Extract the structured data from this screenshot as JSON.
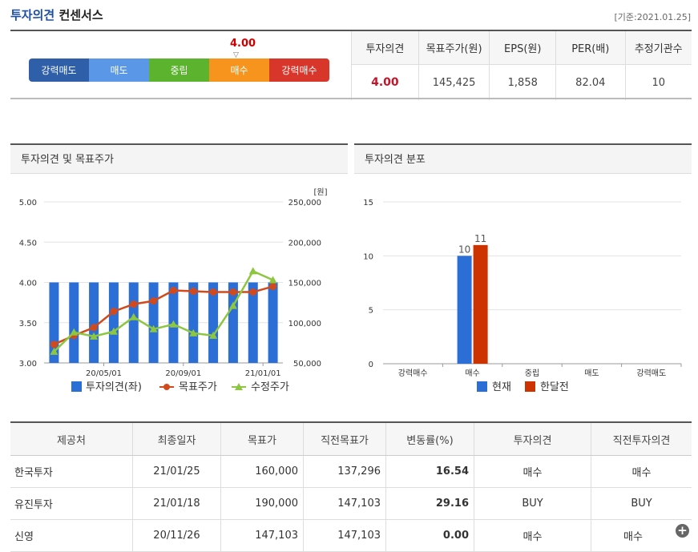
{
  "header": {
    "title_blue": "투자의견",
    "title_dark": "컨센서스",
    "date": "[기준:2021.01.25]"
  },
  "rating": {
    "value": "4.00",
    "marker": "▽",
    "scale": [
      {
        "label": "강력매도",
        "color": "#2e5fa8"
      },
      {
        "label": "매도",
        "color": "#5a97e6"
      },
      {
        "label": "중립",
        "color": "#5cb42e"
      },
      {
        "label": "매수",
        "color": "#f7941d"
      },
      {
        "label": "강력매수",
        "color": "#d9362b"
      }
    ]
  },
  "summary": {
    "headers": [
      "투자의견",
      "목표주가(원)",
      "EPS(원)",
      "PER(배)",
      "추정기관수"
    ],
    "values": [
      "4.00",
      "145,425",
      "1,858",
      "82.04",
      "10"
    ]
  },
  "panels": {
    "left_title": "투자의견 및 목표주가",
    "right_title": "투자의견 분포"
  },
  "chart_data": [
    {
      "type": "bar+line",
      "unit_label": "[원]",
      "y_left_ticks": [
        "5.00",
        "4.50",
        "4.00",
        "3.50",
        "3.00"
      ],
      "y_right_ticks": [
        "250,000",
        "200,000",
        "150,000",
        "100,000",
        "50,000"
      ],
      "ylim_left": [
        3.0,
        5.0
      ],
      "ylim_right": [
        50000,
        250000
      ],
      "x_tick_labels": [
        {
          "index": 2,
          "label": "20/05/01"
        },
        {
          "index": 6,
          "label": "20/09/01"
        },
        {
          "index": 10,
          "label": "21/01/01"
        }
      ],
      "series": [
        {
          "name": "투자의견(좌)",
          "type": "bar",
          "color": "#2b6fd6",
          "values": [
            4.0,
            4.0,
            4.0,
            4.0,
            4.0,
            4.0,
            4.0,
            4.0,
            4.0,
            4.0,
            4.0,
            4.0
          ]
        },
        {
          "name": "목표주가",
          "type": "line",
          "color": "#d24a1b",
          "marker": "circle",
          "values": [
            73000,
            84000,
            94000,
            114000,
            123000,
            127000,
            140000,
            139000,
            138000,
            138000,
            138000,
            145000
          ]
        },
        {
          "name": "수정주가",
          "type": "line",
          "color": "#8dc63f",
          "marker": "triangle",
          "values": [
            64000,
            88000,
            83000,
            89000,
            107000,
            92000,
            98000,
            87000,
            84000,
            121000,
            164000,
            153000
          ]
        }
      ],
      "grid": true,
      "legend": "bottom"
    },
    {
      "type": "bar",
      "categories": [
        "강력매수",
        "매수",
        "중립",
        "매도",
        "강력매도"
      ],
      "y_ticks": [
        "15",
        "10",
        "5",
        "0"
      ],
      "ylim": [
        0,
        15
      ],
      "series": [
        {
          "name": "현재",
          "color": "#2b6fd6",
          "values": [
            0,
            10,
            0,
            0,
            0
          ]
        },
        {
          "name": "한달전",
          "color": "#cc3300",
          "values": [
            0,
            11,
            0,
            0,
            0
          ]
        }
      ],
      "data_labels": [
        "10",
        "11"
      ],
      "grid": true,
      "legend": "bottom"
    }
  ],
  "table": {
    "headers": [
      "제공처",
      "최종일자",
      "목표가",
      "직전목표가",
      "변동률(%)",
      "투자의견",
      "직전투자의견"
    ],
    "rows": [
      [
        "한국투자",
        "21/01/25",
        "160,000",
        "137,296",
        "16.54",
        "매수",
        "매수"
      ],
      [
        "유진투자",
        "21/01/18",
        "190,000",
        "147,103",
        "29.16",
        "BUY",
        "BUY"
      ],
      [
        "신영",
        "20/11/26",
        "147,103",
        "147,103",
        "0.00",
        "매수",
        "매수"
      ]
    ],
    "more_icon": "+"
  }
}
